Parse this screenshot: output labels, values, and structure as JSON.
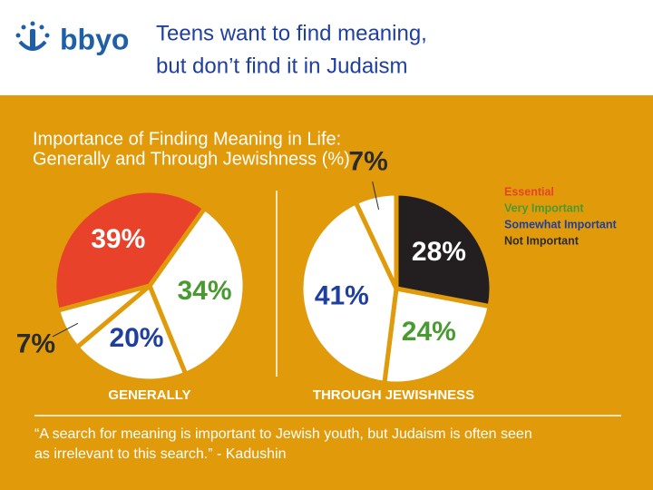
{
  "header": {
    "logo": "bbyo",
    "title": [
      "Teens want to find meaning,",
      "but don’t find it in Judaism"
    ]
  },
  "figure_title": [
    "Importance of Finding Meaning in Life:",
    "Generally and Through Jewishness (%)"
  ],
  "legend": {
    "labels": [
      "Essential",
      "Very Important",
      "Somewhat Important",
      "Not Important"
    ],
    "colors": [
      "#e8432a",
      "#4a9a32",
      "#1f3f9e",
      "#2b2b2b"
    ]
  },
  "chart_data": [
    {
      "type": "pie",
      "label": "GENERALLY",
      "values": [
        39,
        34,
        20,
        7
      ],
      "value_labels": [
        "39%",
        "34%",
        "20%",
        "7%"
      ],
      "colors": [
        "#e8432a",
        "#ffffff",
        "#ffffff",
        "#ffffff"
      ]
    },
    {
      "type": "pie",
      "label": "THROUGH JEWISHNESS",
      "values": [
        28,
        24,
        41,
        7
      ],
      "value_labels": [
        "28%",
        "24%",
        "41%",
        "7%"
      ],
      "colors": [
        "#231f20",
        "#ffffff",
        "#ffffff",
        "#ffffff"
      ]
    }
  ],
  "quote": [
    "“A search for meaning is important to Jewish youth, but Judaism is often seen",
    "as irrelevant to this search.” - Kadushin"
  ]
}
